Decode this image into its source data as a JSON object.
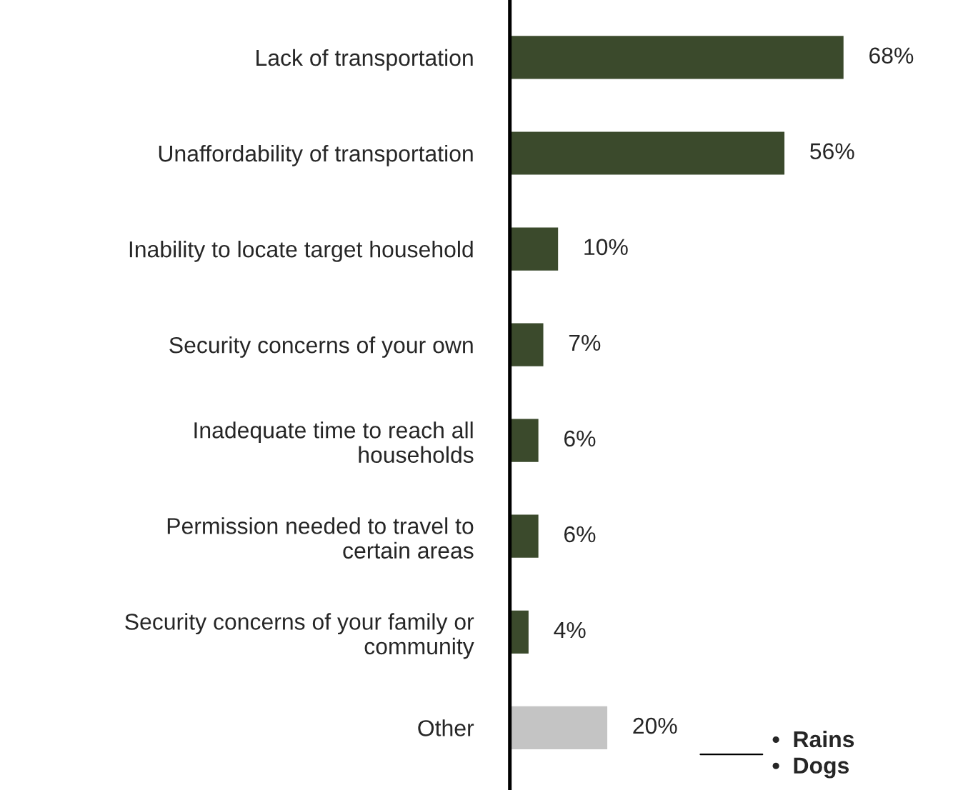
{
  "chart_data": {
    "type": "bar",
    "orientation": "horizontal",
    "categories": [
      "Lack of transportation",
      "Unaffordability of transportation",
      "Inability to locate target household",
      "Security concerns of your own",
      "Inadequate time to reach all\nhouseholds",
      "Permission needed to travel to\ncertain areas",
      "Security concerns of your family or\ncommunity",
      "Other"
    ],
    "values": [
      68,
      56,
      10,
      7,
      6,
      6,
      4,
      20
    ],
    "value_labels": [
      "68%",
      "56%",
      "10%",
      "7%",
      "6%",
      "6%",
      "4%",
      "20%"
    ],
    "colors": [
      "#3b4a2c",
      "#3b4a2c",
      "#3b4a2c",
      "#3b4a2c",
      "#3b4a2c",
      "#3b4a2c",
      "#3b4a2c",
      "#c4c4c4"
    ],
    "annotations": [
      "•  Rains\n•  Dogs"
    ],
    "grid": false,
    "legend": false
  }
}
